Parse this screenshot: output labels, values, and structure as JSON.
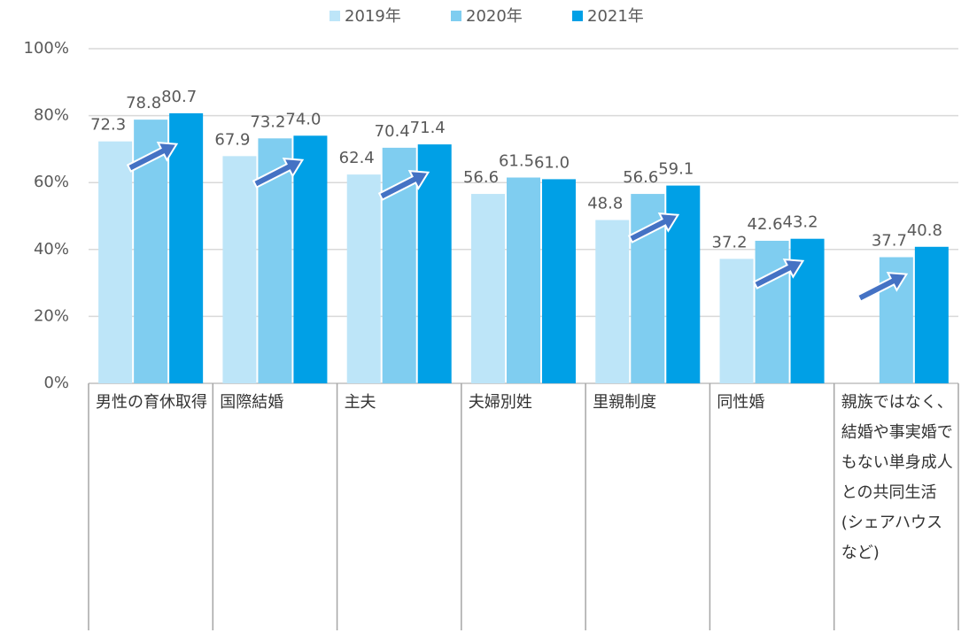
{
  "chart_data": {
    "type": "bar",
    "categories": [
      "男性の育休取得",
      "国際結婚",
      "主夫",
      "夫婦別姓",
      "里親制度",
      "同性婚",
      "親族ではなく、結婚や事実婚でもない単身成人との共同生活(シェアハウスなど)"
    ],
    "series": [
      {
        "name": "2019年",
        "color": "#bde5f8",
        "values": [
          72.3,
          67.9,
          62.4,
          56.6,
          48.8,
          37.2,
          null
        ],
        "value_labels": [
          "72.3",
          "67.9",
          "62.4",
          "56.6",
          "48.8",
          "37.2",
          null
        ]
      },
      {
        "name": "2020年",
        "color": "#7fcdf0",
        "values": [
          78.8,
          73.2,
          70.4,
          61.5,
          56.6,
          42.6,
          37.7
        ],
        "value_labels": [
          "78.8",
          "73.2",
          "70.4",
          "61.5",
          "56.6",
          "42.6",
          "37.7"
        ]
      },
      {
        "name": "2021年",
        "color": "#00a0e6",
        "values": [
          80.7,
          74.0,
          71.4,
          61.0,
          59.1,
          43.2,
          40.8
        ],
        "value_labels": [
          "80.7",
          "74.0",
          "71.4",
          "61.0",
          "59.1",
          "43.2",
          "40.8"
        ]
      }
    ],
    "ylim": [
      0,
      100
    ],
    "yticks": [
      {
        "value": 0,
        "label": "0%"
      },
      {
        "value": 20,
        "label": "20%"
      },
      {
        "value": 40,
        "label": "40%"
      },
      {
        "value": 60,
        "label": "60%"
      },
      {
        "value": 80,
        "label": "80%"
      },
      {
        "value": 100,
        "label": "100%"
      }
    ],
    "grid": true,
    "legend": "top"
  }
}
